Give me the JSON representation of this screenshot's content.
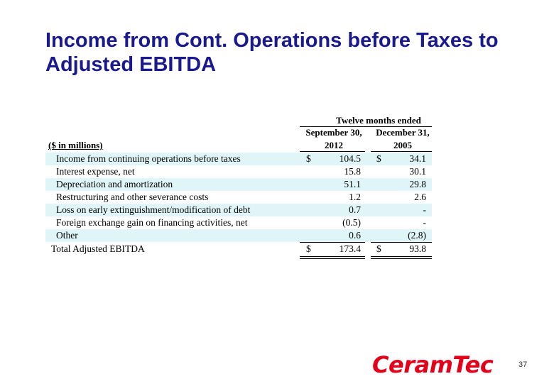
{
  "title": "Income from Cont. Operations before Taxes to Adjusted EBITDA",
  "table": {
    "period_header": "Twelve months ended",
    "units_label": "($ in millions)",
    "columns": [
      {
        "line1": "September 30,",
        "line2": "2012"
      },
      {
        "line1": "December 31,",
        "line2": "2005"
      }
    ],
    "rows": [
      {
        "label": "Income from continuing operations before taxes",
        "cur1": "$",
        "v1": "104.5",
        "cur2": "$",
        "v2": "34.1"
      },
      {
        "label": "Interest expense, net",
        "cur1": "",
        "v1": "15.8",
        "cur2": "",
        "v2": "30.1"
      },
      {
        "label": "Depreciation and amortization",
        "cur1": "",
        "v1": "51.1",
        "cur2": "",
        "v2": "29.8"
      },
      {
        "label": "Restructuring and other severance costs",
        "cur1": "",
        "v1": "1.2",
        "cur2": "",
        "v2": "2.6"
      },
      {
        "label": "Loss on early extinguishment/modification of debt",
        "cur1": "",
        "v1": "0.7",
        "cur2": "",
        "v2": "-"
      },
      {
        "label": "Foreign exchange gain on financing activities, net",
        "cur1": "",
        "v1": "(0.5)",
        "cur2": "",
        "v2": "-"
      },
      {
        "label": "Other",
        "cur1": "",
        "v1": "0.6",
        "cur2": "",
        "v2": "(2.8)"
      }
    ],
    "total": {
      "label": "Total Adjusted EBITDA",
      "cur1": "$",
      "v1": "173.4",
      "cur2": "$",
      "v2": "93.8"
    }
  },
  "logo_text": "CeramTec",
  "page_number": "37",
  "colors": {
    "title": "#1a1a8e",
    "row_shading": "#dff5f7",
    "logo": "#e3001b"
  }
}
